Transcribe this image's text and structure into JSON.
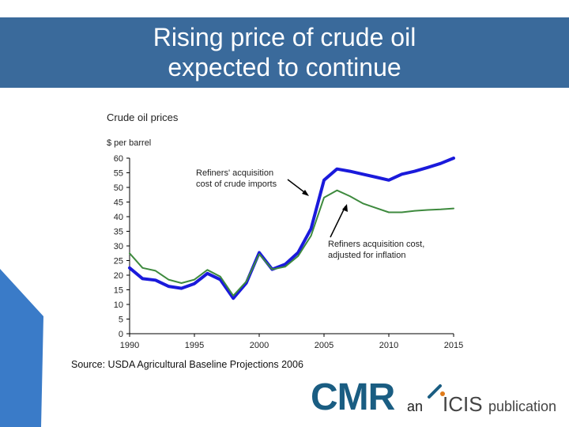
{
  "slide": {
    "title_line1": "Rising price of crude oil",
    "title_line2": "expected to continue",
    "source": "Source: USDA Agricultural Baseline Projections 2006",
    "colors": {
      "title_bar": "#3a6a9b",
      "deco": "#3a7bc8"
    }
  },
  "logo": {
    "cmr": "CMR",
    "an": "an",
    "icis": "ICIS",
    "publication": "publication"
  },
  "chart_data": {
    "type": "line",
    "title": "Crude oil prices",
    "ylabel": "$ per barrel",
    "xlabel": "",
    "xlim": [
      1990,
      2015
    ],
    "ylim": [
      0,
      60
    ],
    "xticks": [
      1990,
      1995,
      2000,
      2005,
      2010,
      2015
    ],
    "yticks": [
      0,
      5,
      10,
      15,
      20,
      25,
      30,
      35,
      40,
      45,
      50,
      55,
      60
    ],
    "series": [
      {
        "name": "Refiners' acquisition cost of crude imports",
        "color": "#1a1adb",
        "x": [
          1990,
          1991,
          1992,
          1993,
          1994,
          1995,
          1996,
          1997,
          1998,
          1999,
          2000,
          2001,
          2002,
          2003,
          2004,
          2005,
          2006,
          2007,
          2008,
          2009,
          2010,
          2011,
          2012,
          2013,
          2014,
          2015
        ],
        "values": [
          22.5,
          18.8,
          18.3,
          16.2,
          15.5,
          17.1,
          20.6,
          18.5,
          12.1,
          17.3,
          27.7,
          22.0,
          23.7,
          27.7,
          35.9,
          52.5,
          56.3,
          55.5,
          54.5,
          53.5,
          52.5,
          54.5,
          55.5,
          56.8,
          58.2,
          60.0
        ]
      },
      {
        "name": "Refiners acquisition cost, adjusted for inflation",
        "color": "#3e8a3e",
        "x": [
          1990,
          1991,
          1992,
          1993,
          1994,
          1995,
          1996,
          1997,
          1998,
          1999,
          2000,
          2001,
          2002,
          2003,
          2004,
          2005,
          2006,
          2007,
          2008,
          2009,
          2010,
          2011,
          2012,
          2013,
          2014,
          2015
        ],
        "values": [
          27.5,
          22.5,
          21.5,
          18.5,
          17.3,
          18.5,
          21.8,
          19.5,
          13.0,
          17.8,
          27.2,
          22.0,
          22.9,
          26.5,
          33.5,
          46.5,
          49.0,
          47.0,
          44.5,
          43.0,
          41.5,
          41.5,
          42.0,
          42.3,
          42.5,
          42.8
        ]
      }
    ],
    "annotations": [
      {
        "line1": "Refiners' acquisition",
        "line2": "cost of crude imports"
      },
      {
        "line1": "Refiners acquisition cost,",
        "line2": "adjusted for inflation"
      }
    ]
  }
}
